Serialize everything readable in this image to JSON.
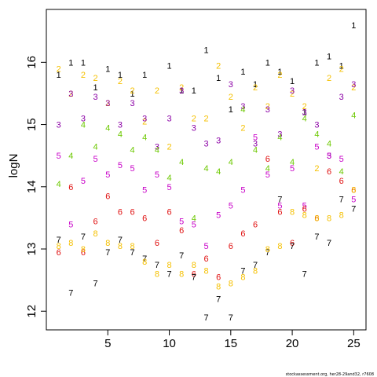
{
  "chart_data": {
    "type": "scatter",
    "ylabel": "logN",
    "xlim": [
      0,
      26
    ],
    "ylim": [
      11.7,
      16.85
    ],
    "x_ticks": [
      5,
      10,
      15,
      20,
      25
    ],
    "y_ticks": [
      12,
      13,
      14,
      15,
      16
    ],
    "grid": false,
    "marker_style": "digit glyph per age (1-8)",
    "age_colors": {
      "1": "#000000",
      "2": "#f5c000",
      "3": "#8b00a6",
      "4": "#6cc800",
      "5": "#c800c8",
      "6": "#e01010",
      "7": "#000000",
      "8": "#f5c000"
    },
    "series": [
      {
        "age": "1",
        "x": [
          1,
          2,
          3,
          4,
          5,
          6,
          7,
          8,
          10,
          11,
          12,
          13,
          14,
          15,
          16,
          17,
          18,
          19,
          20,
          21,
          22,
          23,
          24,
          25
        ],
        "y": [
          15.8,
          16.0,
          16.0,
          15.6,
          15.9,
          15.8,
          15.5,
          15.8,
          15.95,
          15.55,
          15.55,
          16.2,
          15.75,
          15.25,
          15.85,
          15.65,
          16.0,
          15.85,
          15.7,
          15.2,
          16.0,
          16.1,
          15.95,
          16.6
        ]
      },
      {
        "age": "2",
        "x": [
          1,
          2,
          3,
          4,
          5,
          6,
          7,
          8,
          9,
          10,
          11,
          12,
          13,
          14,
          15,
          16,
          17,
          18,
          19,
          20,
          21,
          22,
          23,
          24,
          25
        ],
        "y": [
          15.9,
          15.5,
          15.8,
          15.75,
          15.35,
          15.7,
          15.55,
          15.05,
          15.55,
          14.65,
          15.6,
          15.1,
          15.1,
          15.95,
          15.45,
          14.95,
          15.6,
          15.3,
          15.8,
          15.5,
          15.3,
          14.3,
          15.75,
          15.9,
          15.6
        ]
      },
      {
        "age": "3",
        "x": [
          1,
          2,
          3,
          4,
          5,
          6,
          7,
          8,
          9,
          10,
          11,
          12,
          13,
          14,
          15,
          16,
          17,
          18,
          19,
          20,
          21,
          22,
          23,
          24,
          25
        ],
        "y": [
          15.0,
          15.5,
          15.1,
          15.45,
          15.35,
          15.0,
          15.35,
          15.1,
          14.65,
          15.1,
          15.55,
          14.95,
          14.7,
          14.75,
          15.65,
          15.3,
          14.7,
          15.25,
          14.85,
          15.55,
          15.2,
          15.0,
          14.5,
          15.45,
          15.65
        ]
      },
      {
        "age": "4",
        "x": [
          1,
          2,
          3,
          4,
          5,
          6,
          7,
          8,
          9,
          10,
          11,
          12,
          13,
          14,
          15,
          16,
          17,
          18,
          19,
          20,
          21,
          22,
          23,
          24,
          25
        ],
        "y": [
          14.05,
          14.5,
          15.0,
          14.65,
          14.95,
          14.85,
          14.6,
          14.8,
          14.6,
          14.15,
          14.4,
          13.5,
          14.3,
          14.25,
          14.4,
          15.25,
          14.6,
          14.3,
          14.8,
          14.4,
          15.1,
          14.85,
          14.7,
          14.25,
          15.15
        ]
      },
      {
        "age": "5",
        "x": [
          1,
          2,
          3,
          4,
          5,
          6,
          7,
          8,
          9,
          10,
          11,
          12,
          13,
          14,
          15,
          16,
          17,
          18,
          19,
          20,
          21,
          22,
          23,
          24,
          25
        ],
        "y": [
          14.5,
          13.4,
          14.1,
          14.45,
          14.2,
          14.35,
          14.3,
          13.95,
          14.2,
          14.0,
          13.45,
          13.4,
          13.05,
          13.55,
          13.7,
          13.95,
          14.8,
          14.2,
          13.7,
          14.3,
          13.7,
          14.65,
          14.5,
          14.45,
          13.8
        ]
      },
      {
        "age": "6",
        "x": [
          1,
          2,
          3,
          4,
          5,
          6,
          7,
          8,
          9,
          10,
          11,
          12,
          13,
          14,
          15,
          16,
          17,
          18,
          19,
          20,
          21,
          22,
          23,
          24,
          25
        ],
        "y": [
          12.95,
          14.0,
          12.95,
          13.45,
          13.85,
          13.6,
          13.6,
          13.5,
          13.1,
          13.6,
          13.3,
          12.6,
          12.85,
          12.55,
          13.05,
          13.25,
          13.4,
          14.45,
          13.6,
          13.1,
          13.65,
          13.5,
          14.25,
          14.1,
          13.95
        ]
      },
      {
        "age": "7",
        "x": [
          1,
          2,
          3,
          4,
          5,
          6,
          7,
          8,
          9,
          10,
          11,
          12,
          13,
          14,
          15,
          16,
          17,
          18,
          19,
          20,
          21,
          22,
          23,
          24,
          25
        ],
        "y": [
          13.15,
          12.3,
          13.2,
          12.45,
          12.95,
          13.15,
          12.95,
          12.85,
          12.75,
          12.6,
          12.9,
          12.55,
          11.9,
          12.2,
          11.9,
          12.65,
          12.75,
          12.95,
          13.8,
          13.05,
          12.6,
          13.2,
          13.1,
          13.8,
          13.65
        ]
      },
      {
        "age": "8",
        "x": [
          1,
          2,
          3,
          4,
          5,
          6,
          7,
          8,
          9,
          10,
          11,
          12,
          13,
          14,
          15,
          16,
          17,
          18,
          19,
          20,
          21,
          22,
          23,
          24,
          25
        ],
        "y": [
          13.05,
          13.1,
          13.0,
          13.25,
          13.1,
          13.05,
          13.05,
          12.8,
          12.6,
          12.75,
          12.6,
          12.75,
          12.65,
          12.4,
          12.45,
          12.55,
          12.65,
          13.0,
          13.05,
          13.6,
          13.55,
          13.5,
          13.5,
          13.55,
          13.95
        ]
      }
    ]
  },
  "footer": "stockassessment.org, her28-29and32, r7608"
}
